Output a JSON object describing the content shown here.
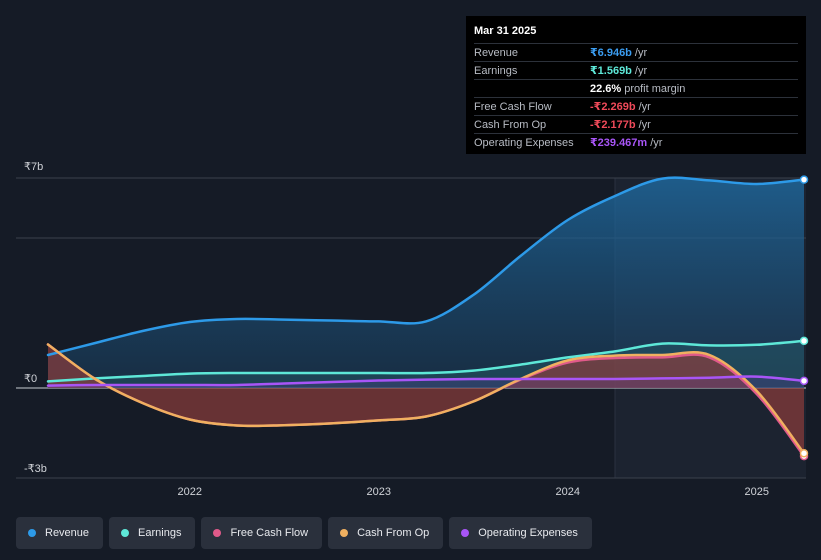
{
  "colors": {
    "revenue": "#2d9ae8",
    "earnings": "#5ee8d8",
    "fcf": "#e05a8a",
    "cfo": "#f0b060",
    "opex": "#a855f7",
    "negative": "#f04a5a"
  },
  "tooltip": {
    "date": "Mar 31 2025",
    "rows": [
      {
        "label": "Revenue",
        "value": "₹6.946b",
        "unit": "/yr",
        "color": "#3b9cf0"
      },
      {
        "label": "Earnings",
        "value": "₹1.569b",
        "unit": "/yr",
        "color": "#5ee8d8"
      },
      {
        "label": "",
        "value": "22.6%",
        "unit": "profit margin",
        "color": "#ffffff"
      },
      {
        "label": "Free Cash Flow",
        "value": "-₹2.269b",
        "unit": "/yr",
        "color": "#f04a5a"
      },
      {
        "label": "Cash From Op",
        "value": "-₹2.177b",
        "unit": "/yr",
        "color": "#f04a5a"
      },
      {
        "label": "Operating Expenses",
        "value": "₹239.467m",
        "unit": "/yr",
        "color": "#a855f7"
      }
    ]
  },
  "chart_data": {
    "type": "area",
    "y_unit": "₹ billions",
    "ylim": [
      -3,
      7
    ],
    "xlim": [
      2021.25,
      2025.25
    ],
    "y_tick_labels": [
      {
        "value": 7,
        "label": "₹7b"
      },
      {
        "value": 0,
        "label": "₹0"
      },
      {
        "value": -3,
        "label": "-₹3b"
      }
    ],
    "x_tick_labels": [
      {
        "value": 2022,
        "label": "2022"
      },
      {
        "value": 2023,
        "label": "2023"
      },
      {
        "value": 2024,
        "label": "2024"
      },
      {
        "value": 2025,
        "label": "2025"
      }
    ],
    "gridlines": [
      7,
      5,
      0,
      -3
    ],
    "highlight_from": 2024.25,
    "series": [
      {
        "name": "Revenue",
        "key": "revenue",
        "x": [
          2021.25,
          2021.5,
          2021.75,
          2022.0,
          2022.25,
          2022.5,
          2022.75,
          2023.0,
          2023.25,
          2023.5,
          2023.75,
          2024.0,
          2024.25,
          2024.5,
          2024.75,
          2025.0,
          2025.25
        ],
        "y": [
          1.1,
          1.5,
          1.9,
          2.2,
          2.3,
          2.28,
          2.25,
          2.22,
          2.22,
          3.1,
          4.4,
          5.6,
          6.4,
          6.98,
          6.92,
          6.8,
          6.946
        ]
      },
      {
        "name": "Earnings",
        "key": "earnings",
        "x": [
          2021.25,
          2021.5,
          2021.75,
          2022.0,
          2022.25,
          2022.5,
          2022.75,
          2023.0,
          2023.25,
          2023.5,
          2023.75,
          2024.0,
          2024.25,
          2024.5,
          2024.75,
          2025.0,
          2025.25
        ],
        "y": [
          0.22,
          0.32,
          0.4,
          0.48,
          0.5,
          0.5,
          0.5,
          0.5,
          0.5,
          0.58,
          0.78,
          1.02,
          1.22,
          1.48,
          1.42,
          1.44,
          1.569
        ]
      },
      {
        "name": "Free Cash Flow",
        "key": "fcf",
        "x": [
          2021.25,
          2021.5,
          2021.75,
          2022.0,
          2022.25,
          2022.5,
          2022.75,
          2023.0,
          2023.25,
          2023.5,
          2023.75,
          2024.0,
          2024.25,
          2024.5,
          2024.75,
          2025.0,
          2025.25
        ],
        "y": [
          1.45,
          0.3,
          -0.5,
          -1.05,
          -1.25,
          -1.24,
          -1.18,
          -1.08,
          -0.95,
          -0.45,
          0.28,
          0.85,
          1.0,
          1.02,
          1.02,
          -0.2,
          -2.269
        ]
      },
      {
        "name": "Cash From Op",
        "key": "cfo",
        "x": [
          2021.25,
          2021.5,
          2021.75,
          2022.0,
          2022.25,
          2022.5,
          2022.75,
          2023.0,
          2023.25,
          2023.5,
          2023.75,
          2024.0,
          2024.25,
          2024.5,
          2024.75,
          2025.0,
          2025.25
        ],
        "y": [
          1.45,
          0.3,
          -0.5,
          -1.05,
          -1.25,
          -1.24,
          -1.18,
          -1.08,
          -0.95,
          -0.45,
          0.3,
          0.92,
          1.08,
          1.1,
          1.1,
          -0.1,
          -2.177
        ]
      },
      {
        "name": "Operating Expenses",
        "key": "opex",
        "x": [
          2021.25,
          2021.5,
          2021.75,
          2022.0,
          2022.25,
          2022.5,
          2022.75,
          2023.0,
          2023.25,
          2023.5,
          2023.75,
          2024.0,
          2024.25,
          2024.5,
          2024.75,
          2025.0,
          2025.25
        ],
        "y": [
          0.08,
          0.1,
          0.1,
          0.1,
          0.1,
          0.15,
          0.2,
          0.25,
          0.28,
          0.3,
          0.3,
          0.3,
          0.3,
          0.32,
          0.34,
          0.38,
          0.239
        ]
      }
    ]
  },
  "legend": [
    {
      "label": "Revenue",
      "color": "#2d9ae8"
    },
    {
      "label": "Earnings",
      "color": "#5ee8d8"
    },
    {
      "label": "Free Cash Flow",
      "color": "#e05a8a"
    },
    {
      "label": "Cash From Op",
      "color": "#f0b060"
    },
    {
      "label": "Operating Expenses",
      "color": "#a855f7"
    }
  ]
}
